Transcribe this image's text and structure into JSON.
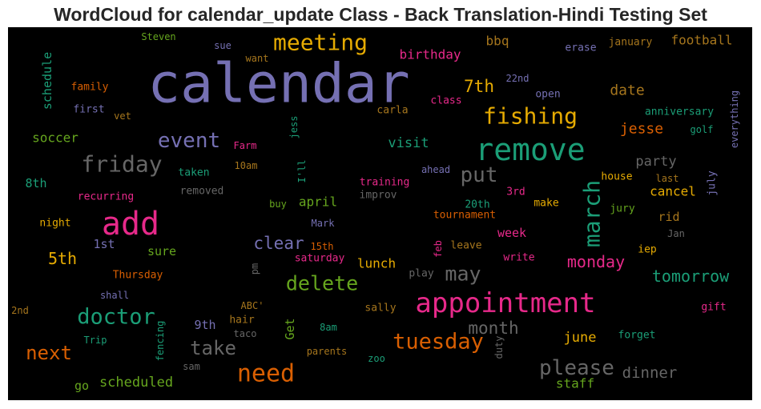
{
  "chart_data": {
    "type": "wordcloud",
    "title": "WordCloud for calendar_update Class - Back Translation-Hindi Testing Set",
    "background": "#000000",
    "palette": {
      "purple": "#7570b3",
      "green": "#1b9e77",
      "orange": "#d95f02",
      "pink": "#e7298a",
      "lime": "#66a61e",
      "gold": "#e6ab02",
      "brown": "#a6761d",
      "gray": "#666666"
    },
    "words": [
      {
        "text": "calendar",
        "color": "purple"
      },
      {
        "text": "remove",
        "color": "green"
      },
      {
        "text": "add",
        "color": "pink"
      },
      {
        "text": "appointment",
        "color": "pink"
      },
      {
        "text": "meeting",
        "color": "gold"
      },
      {
        "text": "fishing",
        "color": "gold"
      },
      {
        "text": "need",
        "color": "orange"
      },
      {
        "text": "friday",
        "color": "gray"
      },
      {
        "text": "march",
        "color": "green"
      },
      {
        "text": "doctor",
        "color": "green"
      },
      {
        "text": "tuesday",
        "color": "orange"
      },
      {
        "text": "event",
        "color": "purple"
      },
      {
        "text": "delete",
        "color": "lime"
      },
      {
        "text": "please",
        "color": "gray"
      },
      {
        "text": "put",
        "color": "gray"
      },
      {
        "text": "may",
        "color": "gray"
      },
      {
        "text": "take",
        "color": "gray"
      },
      {
        "text": "next",
        "color": "orange"
      },
      {
        "text": "7th",
        "color": "gold"
      },
      {
        "text": "month",
        "color": "gray"
      },
      {
        "text": "clear",
        "color": "purple"
      },
      {
        "text": "monday",
        "color": "pink"
      },
      {
        "text": "tomorrow",
        "color": "green"
      },
      {
        "text": "dinner",
        "color": "gray"
      },
      {
        "text": "5th",
        "color": "gold"
      },
      {
        "text": "date",
        "color": "brown"
      },
      {
        "text": "jesse",
        "color": "orange"
      },
      {
        "text": "party",
        "color": "gray"
      },
      {
        "text": "june",
        "color": "gold"
      },
      {
        "text": "scheduled",
        "color": "lime"
      },
      {
        "text": "cancel",
        "color": "gold"
      },
      {
        "text": "visit",
        "color": "green"
      },
      {
        "text": "birthday",
        "color": "pink"
      },
      {
        "text": "bbq",
        "color": "brown"
      },
      {
        "text": "football",
        "color": "brown"
      },
      {
        "text": "soccer",
        "color": "lime"
      },
      {
        "text": "schedule",
        "color": "green"
      },
      {
        "text": "lunch",
        "color": "gold"
      },
      {
        "text": "april",
        "color": "lime"
      },
      {
        "text": "week",
        "color": "pink"
      },
      {
        "text": "rid",
        "color": "brown"
      },
      {
        "text": "sure",
        "color": "lime"
      },
      {
        "text": "staff",
        "color": "lime"
      },
      {
        "text": "8th",
        "color": "green"
      },
      {
        "text": "1st",
        "color": "purple"
      },
      {
        "text": "9th",
        "color": "purple"
      },
      {
        "text": "go",
        "color": "lime"
      },
      {
        "text": "Get",
        "color": "lime"
      },
      {
        "text": "Steven",
        "color": "lime"
      },
      {
        "text": "sue",
        "color": "purple"
      },
      {
        "text": "want",
        "color": "brown"
      },
      {
        "text": "erase",
        "color": "purple"
      },
      {
        "text": "january",
        "color": "brown"
      },
      {
        "text": "family",
        "color": "orange"
      },
      {
        "text": "22nd",
        "color": "purple"
      },
      {
        "text": "open",
        "color": "purple"
      },
      {
        "text": "first",
        "color": "purple"
      },
      {
        "text": "carla",
        "color": "brown"
      },
      {
        "text": "class",
        "color": "pink"
      },
      {
        "text": "vet",
        "color": "brown"
      },
      {
        "text": "jess",
        "color": "green"
      },
      {
        "text": "anniversary",
        "color": "green"
      },
      {
        "text": "golf",
        "color": "green"
      },
      {
        "text": "everything",
        "color": "purple"
      },
      {
        "text": "Farm",
        "color": "pink"
      },
      {
        "text": "I'll",
        "color": "green"
      },
      {
        "text": "10am",
        "color": "brown"
      },
      {
        "text": "taken",
        "color": "green"
      },
      {
        "text": "ahead",
        "color": "purple"
      },
      {
        "text": "training",
        "color": "pink"
      },
      {
        "text": "house",
        "color": "gold"
      },
      {
        "text": "last",
        "color": "brown"
      },
      {
        "text": "july",
        "color": "purple"
      },
      {
        "text": "removed",
        "color": "gray"
      },
      {
        "text": "improv",
        "color": "gray"
      },
      {
        "text": "3rd",
        "color": "pink"
      },
      {
        "text": "recurring",
        "color": "pink"
      },
      {
        "text": "buy",
        "color": "lime"
      },
      {
        "text": "20th",
        "color": "green"
      },
      {
        "text": "make",
        "color": "gold"
      },
      {
        "text": "jury",
        "color": "lime"
      },
      {
        "text": "Mark",
        "color": "purple"
      },
      {
        "text": "tournament",
        "color": "orange"
      },
      {
        "text": "night",
        "color": "gold"
      },
      {
        "text": "Jan",
        "color": "gray"
      },
      {
        "text": "15th",
        "color": "orange"
      },
      {
        "text": "leave",
        "color": "brown"
      },
      {
        "text": "feb",
        "color": "pink"
      },
      {
        "text": "saturday",
        "color": "pink"
      },
      {
        "text": "write",
        "color": "pink"
      },
      {
        "text": "iep",
        "color": "gold"
      },
      {
        "text": "pm",
        "color": "gray"
      },
      {
        "text": "Thursday",
        "color": "orange"
      },
      {
        "text": "play",
        "color": "gray"
      },
      {
        "text": "shall",
        "color": "purple"
      },
      {
        "text": "2nd",
        "color": "brown"
      },
      {
        "text": "ABC'",
        "color": "brown"
      },
      {
        "text": "sally",
        "color": "brown"
      },
      {
        "text": "gift",
        "color": "pink"
      },
      {
        "text": "fencing",
        "color": "green"
      },
      {
        "text": "hair",
        "color": "brown"
      },
      {
        "text": "taco",
        "color": "gray"
      },
      {
        "text": "8am",
        "color": "green"
      },
      {
        "text": "forget",
        "color": "green"
      },
      {
        "text": "Trip",
        "color": "green"
      },
      {
        "text": "duty",
        "color": "gray"
      },
      {
        "text": "parents",
        "color": "brown"
      },
      {
        "text": "zoo",
        "color": "green"
      },
      {
        "text": "sam",
        "color": "gray"
      }
    ]
  }
}
